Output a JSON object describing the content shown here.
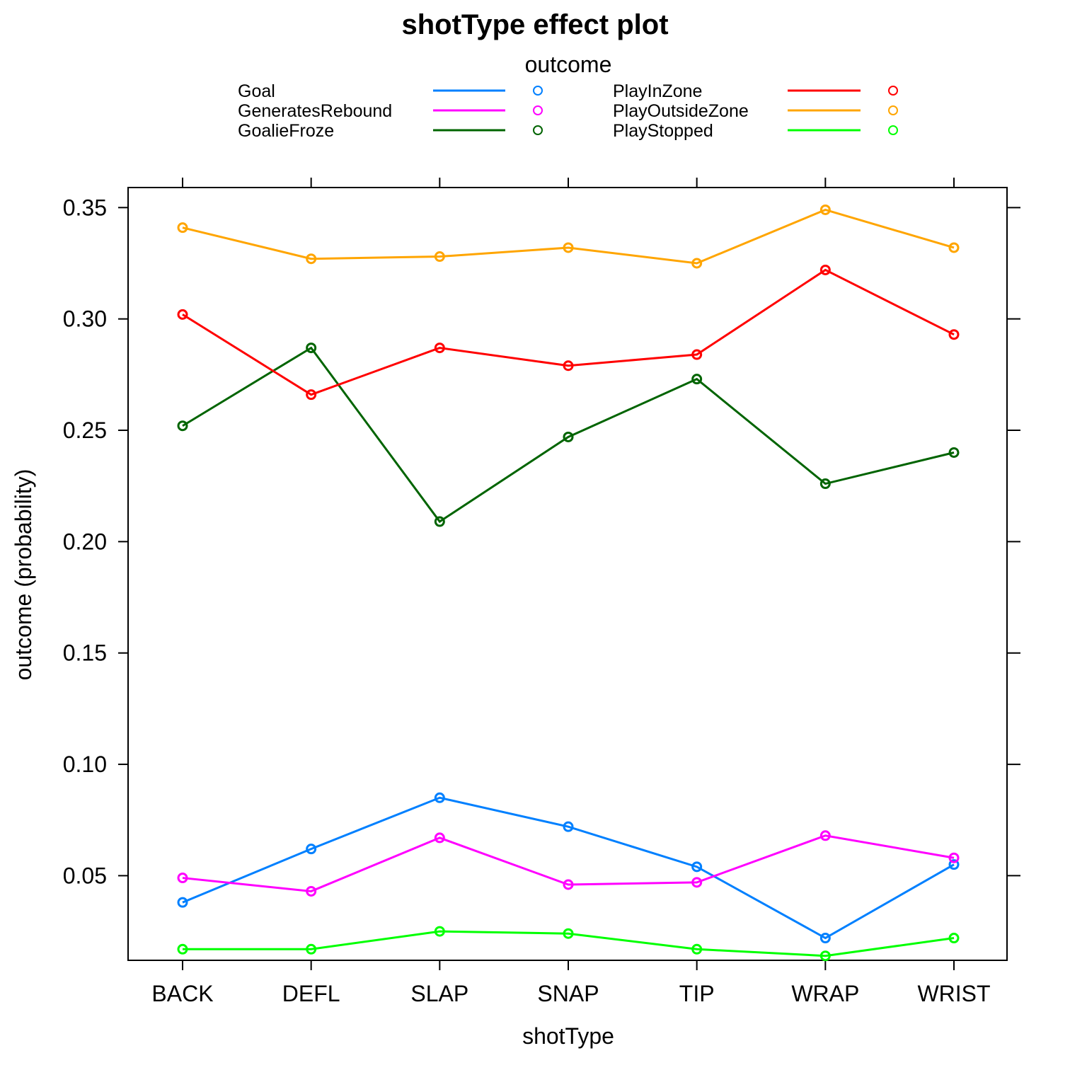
{
  "chart_data": {
    "type": "line",
    "title": "shotType effect plot",
    "xlabel": "shotType",
    "ylabel": "outcome (probability)",
    "legend_title": "outcome",
    "legend_position": "top",
    "grid": false,
    "ylim": [
      0.012,
      0.359
    ],
    "yticks": [
      "0.05",
      "0.10",
      "0.15",
      "0.20",
      "0.25",
      "0.30",
      "0.35"
    ],
    "categories": [
      "BACK",
      "DEFL",
      "SLAP",
      "SNAP",
      "TIP",
      "WRAP",
      "WRIST"
    ],
    "series": [
      {
        "name": "Goal",
        "color": "#0080ff",
        "values": [
          0.038,
          0.062,
          0.085,
          0.072,
          0.054,
          0.022,
          0.055
        ]
      },
      {
        "name": "GeneratesRebound",
        "color": "#ff00ff",
        "values": [
          0.049,
          0.043,
          0.067,
          0.046,
          0.047,
          0.068,
          0.058
        ]
      },
      {
        "name": "GoalieFroze",
        "color": "#006400",
        "values": [
          0.252,
          0.287,
          0.209,
          0.247,
          0.273,
          0.226,
          0.24
        ]
      },
      {
        "name": "PlayInZone",
        "color": "#ff0000",
        "values": [
          0.302,
          0.266,
          0.287,
          0.279,
          0.284,
          0.322,
          0.293
        ]
      },
      {
        "name": "PlayOutsideZone",
        "color": "#ffa500",
        "values": [
          0.341,
          0.327,
          0.328,
          0.332,
          0.325,
          0.349,
          0.332
        ]
      },
      {
        "name": "PlayStopped",
        "color": "#00ff00",
        "values": [
          0.017,
          0.017,
          0.025,
          0.024,
          0.017,
          0.014,
          0.022
        ]
      }
    ]
  }
}
